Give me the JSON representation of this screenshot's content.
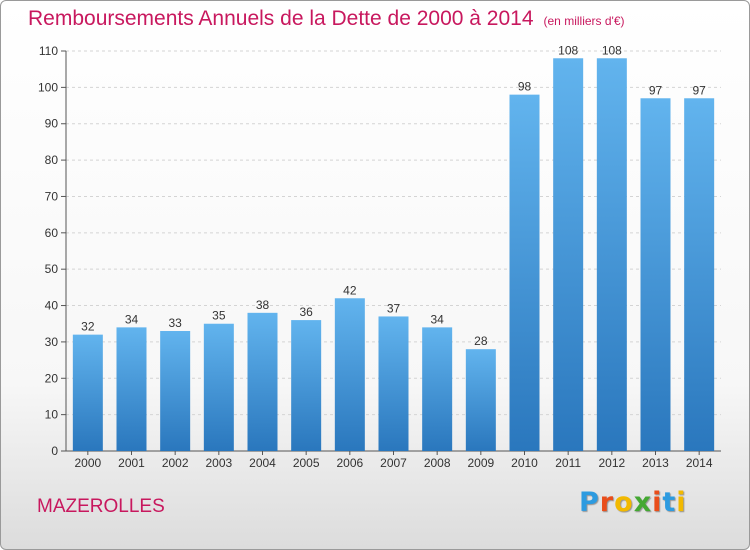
{
  "title": "Remboursements Annuels de la Dette de 2000 à 2014",
  "unit": "(en milliers d'€)",
  "commune": "MAZEROLLES",
  "logo": {
    "letters": [
      "P",
      "r",
      "o",
      "x",
      "i",
      "t",
      "i"
    ],
    "colors": [
      "#2d9be0",
      "#e94e1b",
      "#f2b900",
      "#44a832",
      "#e94e1b",
      "#2d9be0",
      "#f2b900"
    ]
  },
  "colors": {
    "title": "#c8185e",
    "bar": "#3d95d6",
    "bar_light": "#62b4ee",
    "bar_dark": "#2a77bd",
    "grid": "#d4d4d4"
  },
  "chart_data": {
    "type": "bar",
    "title": "Remboursements Annuels de la Dette de 2000 à 2014",
    "subtitle": "(en milliers d'€)",
    "xlabel": "",
    "ylabel": "",
    "categories": [
      "2000",
      "2001",
      "2002",
      "2003",
      "2004",
      "2005",
      "2006",
      "2007",
      "2008",
      "2009",
      "2010",
      "2011",
      "2012",
      "2013",
      "2014"
    ],
    "values": [
      32,
      34,
      33,
      35,
      38,
      36,
      42,
      37,
      34,
      28,
      98,
      108,
      108,
      97,
      97
    ],
    "ylim": [
      0,
      110
    ],
    "yticks": [
      0,
      10,
      20,
      30,
      40,
      50,
      60,
      70,
      80,
      90,
      100,
      110
    ],
    "grid": true,
    "data_labels": true
  }
}
